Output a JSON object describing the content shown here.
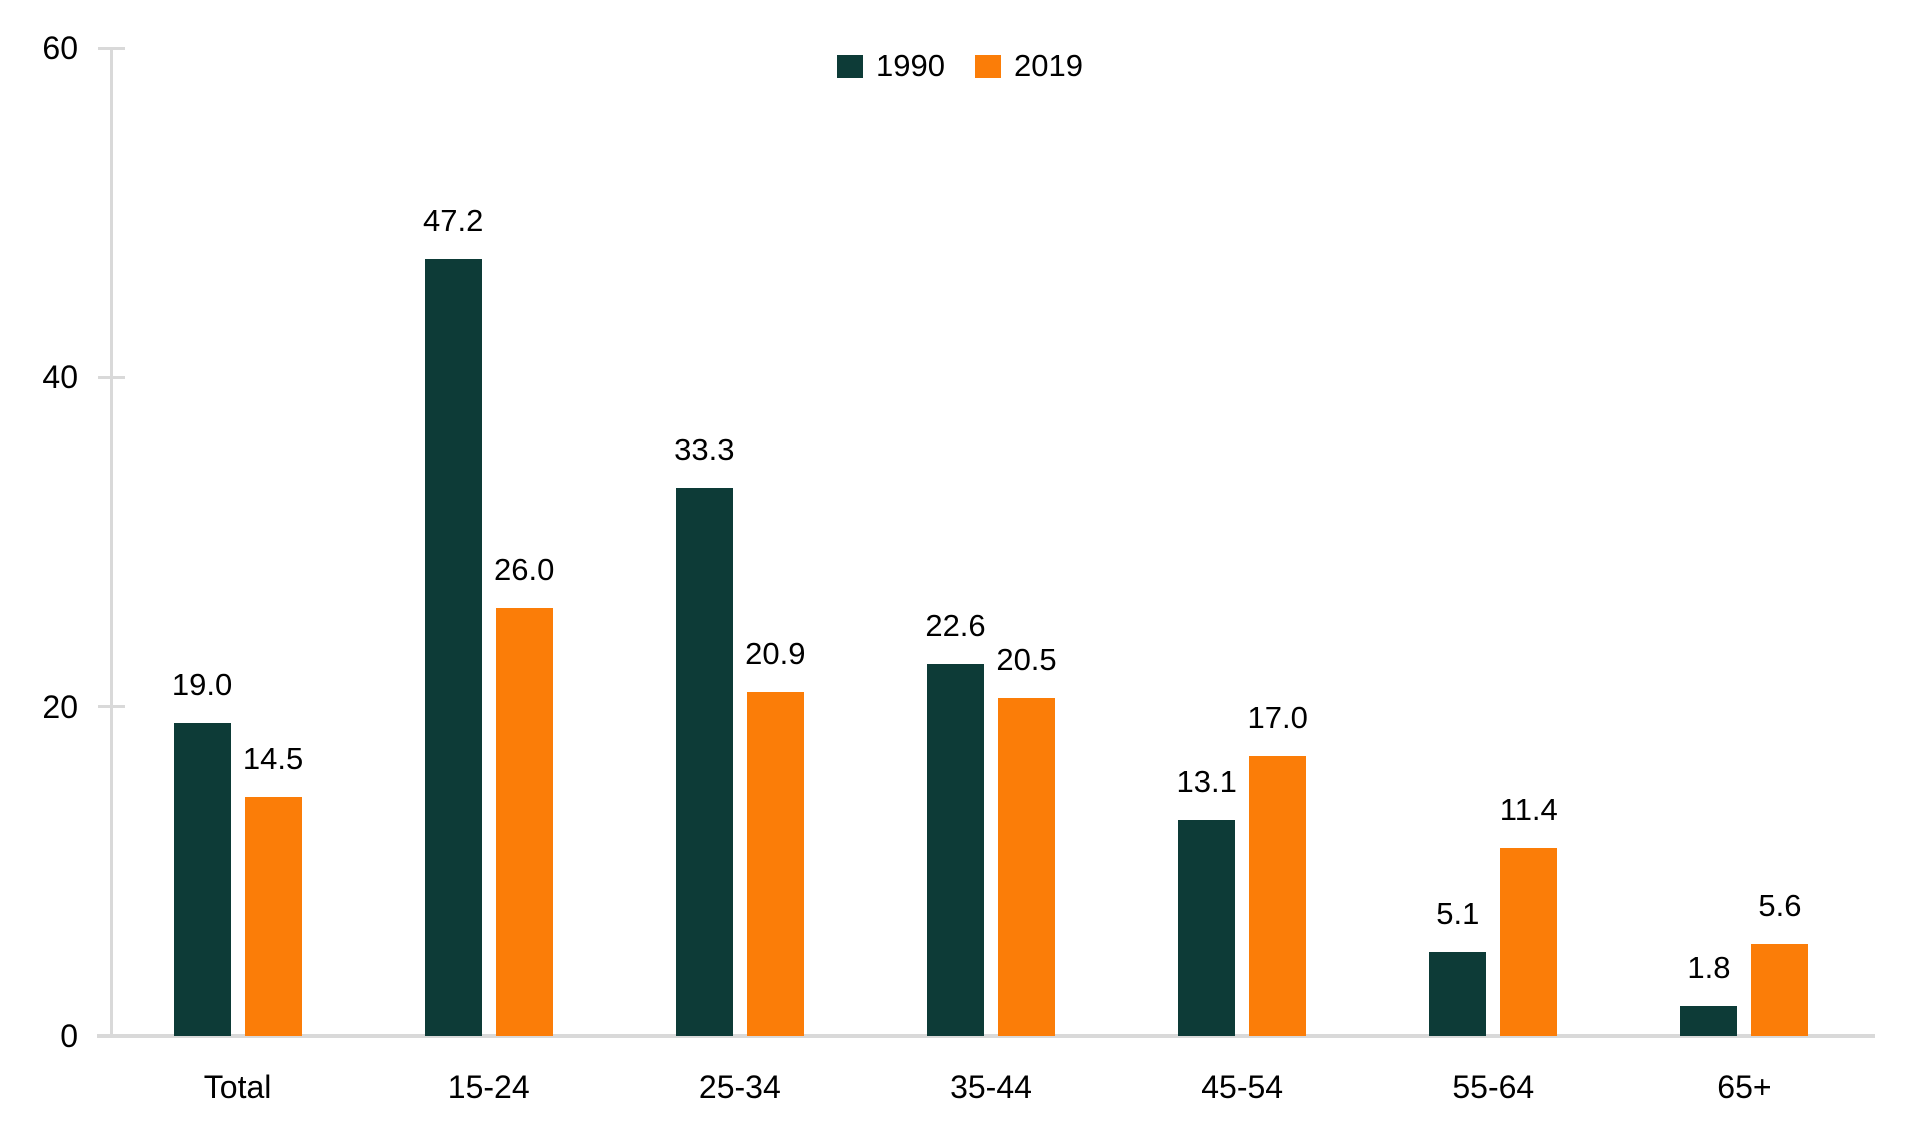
{
  "chart_data": {
    "type": "bar",
    "title": "",
    "xlabel": "",
    "ylabel": "",
    "categories": [
      "Total",
      "15-24",
      "25-34",
      "35-44",
      "45-54",
      "55-64",
      "65+"
    ],
    "series": [
      {
        "name": "1990",
        "color": "#0d3b37",
        "values": [
          19.0,
          47.2,
          33.3,
          22.6,
          13.1,
          5.1,
          1.8
        ]
      },
      {
        "name": "2019",
        "color": "#fb7d08",
        "values": [
          14.5,
          26.0,
          20.9,
          20.5,
          17.0,
          11.4,
          5.6
        ]
      }
    ],
    "data_labels": [
      [
        "19.0",
        "47.2",
        "33.3",
        "22.6",
        "13.1",
        "5.1",
        "1.8"
      ],
      [
        "14.5",
        "26.0",
        "20.9",
        "20.5",
        "17.0",
        "11.4",
        "5.6"
      ]
    ],
    "ylim": [
      0,
      60
    ],
    "yticks": [
      "0",
      "20",
      "40",
      "60"
    ],
    "grid": false,
    "legend_position": "top-center",
    "legend_entries": [
      "1990",
      "2019"
    ]
  },
  "colors": {
    "axis": "#d9d9d9",
    "text": "#000000",
    "background": "#ffffff",
    "series_1990": "#0d3b37",
    "series_2019": "#fb7d08"
  }
}
